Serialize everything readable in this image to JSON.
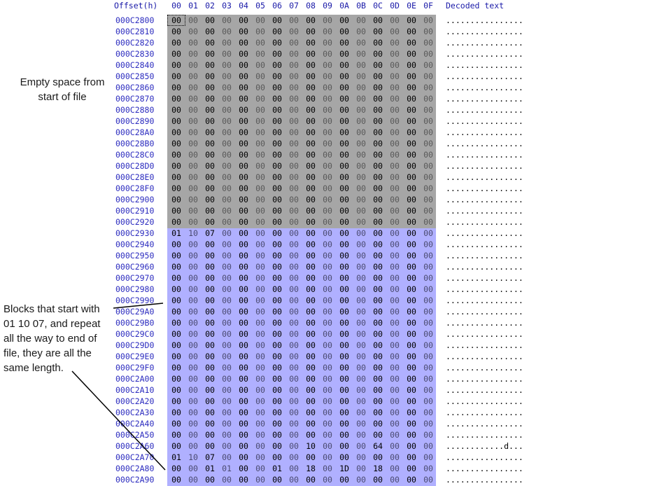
{
  "header": {
    "offset_label": "Offset(h)",
    "columns": [
      "00",
      "01",
      "02",
      "03",
      "04",
      "05",
      "06",
      "07",
      "08",
      "09",
      "0A",
      "0B",
      "0C",
      "0D",
      "0E",
      "0F"
    ],
    "decoded_label": "Decoded text"
  },
  "rows": [
    {
      "offset": "000C2800",
      "bytes": [
        "00",
        "00",
        "00",
        "00",
        "00",
        "00",
        "00",
        "00",
        "00",
        "00",
        "00",
        "00",
        "00",
        "00",
        "00",
        "00"
      ],
      "decoded": "................",
      "region": "gray"
    },
    {
      "offset": "000C2810",
      "bytes": [
        "00",
        "00",
        "00",
        "00",
        "00",
        "00",
        "00",
        "00",
        "00",
        "00",
        "00",
        "00",
        "00",
        "00",
        "00",
        "00"
      ],
      "decoded": "................",
      "region": "gray"
    },
    {
      "offset": "000C2820",
      "bytes": [
        "00",
        "00",
        "00",
        "00",
        "00",
        "00",
        "00",
        "00",
        "00",
        "00",
        "00",
        "00",
        "00",
        "00",
        "00",
        "00"
      ],
      "decoded": "................",
      "region": "gray"
    },
    {
      "offset": "000C2830",
      "bytes": [
        "00",
        "00",
        "00",
        "00",
        "00",
        "00",
        "00",
        "00",
        "00",
        "00",
        "00",
        "00",
        "00",
        "00",
        "00",
        "00"
      ],
      "decoded": "................",
      "region": "gray"
    },
    {
      "offset": "000C2840",
      "bytes": [
        "00",
        "00",
        "00",
        "00",
        "00",
        "00",
        "00",
        "00",
        "00",
        "00",
        "00",
        "00",
        "00",
        "00",
        "00",
        "00"
      ],
      "decoded": "................",
      "region": "gray"
    },
    {
      "offset": "000C2850",
      "bytes": [
        "00",
        "00",
        "00",
        "00",
        "00",
        "00",
        "00",
        "00",
        "00",
        "00",
        "00",
        "00",
        "00",
        "00",
        "00",
        "00"
      ],
      "decoded": "................",
      "region": "gray"
    },
    {
      "offset": "000C2860",
      "bytes": [
        "00",
        "00",
        "00",
        "00",
        "00",
        "00",
        "00",
        "00",
        "00",
        "00",
        "00",
        "00",
        "00",
        "00",
        "00",
        "00"
      ],
      "decoded": "................",
      "region": "gray"
    },
    {
      "offset": "000C2870",
      "bytes": [
        "00",
        "00",
        "00",
        "00",
        "00",
        "00",
        "00",
        "00",
        "00",
        "00",
        "00",
        "00",
        "00",
        "00",
        "00",
        "00"
      ],
      "decoded": "................",
      "region": "gray"
    },
    {
      "offset": "000C2880",
      "bytes": [
        "00",
        "00",
        "00",
        "00",
        "00",
        "00",
        "00",
        "00",
        "00",
        "00",
        "00",
        "00",
        "00",
        "00",
        "00",
        "00"
      ],
      "decoded": "................",
      "region": "gray"
    },
    {
      "offset": "000C2890",
      "bytes": [
        "00",
        "00",
        "00",
        "00",
        "00",
        "00",
        "00",
        "00",
        "00",
        "00",
        "00",
        "00",
        "00",
        "00",
        "00",
        "00"
      ],
      "decoded": "................",
      "region": "gray"
    },
    {
      "offset": "000C28A0",
      "bytes": [
        "00",
        "00",
        "00",
        "00",
        "00",
        "00",
        "00",
        "00",
        "00",
        "00",
        "00",
        "00",
        "00",
        "00",
        "00",
        "00"
      ],
      "decoded": "................",
      "region": "gray"
    },
    {
      "offset": "000C28B0",
      "bytes": [
        "00",
        "00",
        "00",
        "00",
        "00",
        "00",
        "00",
        "00",
        "00",
        "00",
        "00",
        "00",
        "00",
        "00",
        "00",
        "00"
      ],
      "decoded": "................",
      "region": "gray"
    },
    {
      "offset": "000C28C0",
      "bytes": [
        "00",
        "00",
        "00",
        "00",
        "00",
        "00",
        "00",
        "00",
        "00",
        "00",
        "00",
        "00",
        "00",
        "00",
        "00",
        "00"
      ],
      "decoded": "................",
      "region": "gray"
    },
    {
      "offset": "000C28D0",
      "bytes": [
        "00",
        "00",
        "00",
        "00",
        "00",
        "00",
        "00",
        "00",
        "00",
        "00",
        "00",
        "00",
        "00",
        "00",
        "00",
        "00"
      ],
      "decoded": "................",
      "region": "gray"
    },
    {
      "offset": "000C28E0",
      "bytes": [
        "00",
        "00",
        "00",
        "00",
        "00",
        "00",
        "00",
        "00",
        "00",
        "00",
        "00",
        "00",
        "00",
        "00",
        "00",
        "00"
      ],
      "decoded": "................",
      "region": "gray"
    },
    {
      "offset": "000C28F0",
      "bytes": [
        "00",
        "00",
        "00",
        "00",
        "00",
        "00",
        "00",
        "00",
        "00",
        "00",
        "00",
        "00",
        "00",
        "00",
        "00",
        "00"
      ],
      "decoded": "................",
      "region": "gray"
    },
    {
      "offset": "000C2900",
      "bytes": [
        "00",
        "00",
        "00",
        "00",
        "00",
        "00",
        "00",
        "00",
        "00",
        "00",
        "00",
        "00",
        "00",
        "00",
        "00",
        "00"
      ],
      "decoded": "................",
      "region": "gray"
    },
    {
      "offset": "000C2910",
      "bytes": [
        "00",
        "00",
        "00",
        "00",
        "00",
        "00",
        "00",
        "00",
        "00",
        "00",
        "00",
        "00",
        "00",
        "00",
        "00",
        "00"
      ],
      "decoded": "................",
      "region": "gray"
    },
    {
      "offset": "000C2920",
      "bytes": [
        "00",
        "00",
        "00",
        "00",
        "00",
        "00",
        "00",
        "00",
        "00",
        "00",
        "00",
        "00",
        "00",
        "00",
        "00",
        "00"
      ],
      "decoded": "................",
      "region": "gray"
    },
    {
      "offset": "000C2930",
      "bytes": [
        "01",
        "10",
        "07",
        "00",
        "00",
        "00",
        "00",
        "00",
        "00",
        "00",
        "00",
        "00",
        "00",
        "00",
        "00",
        "00"
      ],
      "decoded": "................",
      "region": "blue"
    },
    {
      "offset": "000C2940",
      "bytes": [
        "00",
        "00",
        "00",
        "00",
        "00",
        "00",
        "00",
        "00",
        "00",
        "00",
        "00",
        "00",
        "00",
        "00",
        "00",
        "00"
      ],
      "decoded": "................",
      "region": "blue"
    },
    {
      "offset": "000C2950",
      "bytes": [
        "00",
        "00",
        "00",
        "00",
        "00",
        "00",
        "00",
        "00",
        "00",
        "00",
        "00",
        "00",
        "00",
        "00",
        "00",
        "00"
      ],
      "decoded": "................",
      "region": "blue"
    },
    {
      "offset": "000C2960",
      "bytes": [
        "00",
        "00",
        "00",
        "00",
        "00",
        "00",
        "00",
        "00",
        "00",
        "00",
        "00",
        "00",
        "00",
        "00",
        "00",
        "00"
      ],
      "decoded": "................",
      "region": "blue"
    },
    {
      "offset": "000C2970",
      "bytes": [
        "00",
        "00",
        "00",
        "00",
        "00",
        "00",
        "00",
        "00",
        "00",
        "00",
        "00",
        "00",
        "00",
        "00",
        "00",
        "00"
      ],
      "decoded": "................",
      "region": "blue"
    },
    {
      "offset": "000C2980",
      "bytes": [
        "00",
        "00",
        "00",
        "00",
        "00",
        "00",
        "00",
        "00",
        "00",
        "00",
        "00",
        "00",
        "00",
        "00",
        "00",
        "00"
      ],
      "decoded": "................",
      "region": "blue"
    },
    {
      "offset": "000C2990",
      "bytes": [
        "00",
        "00",
        "00",
        "00",
        "00",
        "00",
        "00",
        "00",
        "00",
        "00",
        "00",
        "00",
        "00",
        "00",
        "00",
        "00"
      ],
      "decoded": "................",
      "region": "blue"
    },
    {
      "offset": "000C29A0",
      "bytes": [
        "00",
        "00",
        "00",
        "00",
        "00",
        "00",
        "00",
        "00",
        "00",
        "00",
        "00",
        "00",
        "00",
        "00",
        "00",
        "00"
      ],
      "decoded": "................",
      "region": "blue"
    },
    {
      "offset": "000C29B0",
      "bytes": [
        "00",
        "00",
        "00",
        "00",
        "00",
        "00",
        "00",
        "00",
        "00",
        "00",
        "00",
        "00",
        "00",
        "00",
        "00",
        "00"
      ],
      "decoded": "................",
      "region": "blue"
    },
    {
      "offset": "000C29C0",
      "bytes": [
        "00",
        "00",
        "00",
        "00",
        "00",
        "00",
        "00",
        "00",
        "00",
        "00",
        "00",
        "00",
        "00",
        "00",
        "00",
        "00"
      ],
      "decoded": "................",
      "region": "blue"
    },
    {
      "offset": "000C29D0",
      "bytes": [
        "00",
        "00",
        "00",
        "00",
        "00",
        "00",
        "00",
        "00",
        "00",
        "00",
        "00",
        "00",
        "00",
        "00",
        "00",
        "00"
      ],
      "decoded": "................",
      "region": "blue"
    },
    {
      "offset": "000C29E0",
      "bytes": [
        "00",
        "00",
        "00",
        "00",
        "00",
        "00",
        "00",
        "00",
        "00",
        "00",
        "00",
        "00",
        "00",
        "00",
        "00",
        "00"
      ],
      "decoded": "................",
      "region": "blue"
    },
    {
      "offset": "000C29F0",
      "bytes": [
        "00",
        "00",
        "00",
        "00",
        "00",
        "00",
        "00",
        "00",
        "00",
        "00",
        "00",
        "00",
        "00",
        "00",
        "00",
        "00"
      ],
      "decoded": "................",
      "region": "blue"
    },
    {
      "offset": "000C2A00",
      "bytes": [
        "00",
        "00",
        "00",
        "00",
        "00",
        "00",
        "00",
        "00",
        "00",
        "00",
        "00",
        "00",
        "00",
        "00",
        "00",
        "00"
      ],
      "decoded": "................",
      "region": "blue"
    },
    {
      "offset": "000C2A10",
      "bytes": [
        "00",
        "00",
        "00",
        "00",
        "00",
        "00",
        "00",
        "00",
        "00",
        "00",
        "00",
        "00",
        "00",
        "00",
        "00",
        "00"
      ],
      "decoded": "................",
      "region": "blue"
    },
    {
      "offset": "000C2A20",
      "bytes": [
        "00",
        "00",
        "00",
        "00",
        "00",
        "00",
        "00",
        "00",
        "00",
        "00",
        "00",
        "00",
        "00",
        "00",
        "00",
        "00"
      ],
      "decoded": "................",
      "region": "blue"
    },
    {
      "offset": "000C2A30",
      "bytes": [
        "00",
        "00",
        "00",
        "00",
        "00",
        "00",
        "00",
        "00",
        "00",
        "00",
        "00",
        "00",
        "00",
        "00",
        "00",
        "00"
      ],
      "decoded": "................",
      "region": "blue"
    },
    {
      "offset": "000C2A40",
      "bytes": [
        "00",
        "00",
        "00",
        "00",
        "00",
        "00",
        "00",
        "00",
        "00",
        "00",
        "00",
        "00",
        "00",
        "00",
        "00",
        "00"
      ],
      "decoded": "................",
      "region": "blue"
    },
    {
      "offset": "000C2A50",
      "bytes": [
        "00",
        "00",
        "00",
        "00",
        "00",
        "00",
        "00",
        "00",
        "00",
        "00",
        "00",
        "00",
        "00",
        "00",
        "00",
        "00"
      ],
      "decoded": "................",
      "region": "blue"
    },
    {
      "offset": "000C2A60",
      "bytes": [
        "00",
        "00",
        "00",
        "00",
        "00",
        "00",
        "00",
        "00",
        "10",
        "00",
        "00",
        "00",
        "64",
        "00",
        "00",
        "00"
      ],
      "decoded": "............d...",
      "region": "blue"
    },
    {
      "offset": "000C2A70",
      "bytes": [
        "01",
        "10",
        "07",
        "00",
        "00",
        "00",
        "00",
        "00",
        "00",
        "00",
        "00",
        "00",
        "00",
        "00",
        "00",
        "00"
      ],
      "decoded": "................",
      "region": "blue"
    },
    {
      "offset": "000C2A80",
      "bytes": [
        "00",
        "00",
        "01",
        "01",
        "00",
        "00",
        "01",
        "00",
        "18",
        "00",
        "1D",
        "00",
        "18",
        "00",
        "00",
        "00"
      ],
      "decoded": "................",
      "region": "blue"
    },
    {
      "offset": "000C2A90",
      "bytes": [
        "00",
        "00",
        "00",
        "00",
        "00",
        "00",
        "00",
        "00",
        "00",
        "00",
        "00",
        "00",
        "00",
        "00",
        "00",
        "00"
      ],
      "decoded": "................",
      "region": "blue"
    }
  ],
  "annotations": {
    "note1": [
      "Empty space from",
      "start of file"
    ],
    "note2": [
      "Blocks that start with",
      "01 10 07, and repeat",
      "all the way to end of",
      "file, they are all the",
      "same length."
    ]
  },
  "colors": {
    "empty_region": "#a6a6a6",
    "block_region": "#b0b0ff",
    "offset_text": "#2b2bbf"
  }
}
